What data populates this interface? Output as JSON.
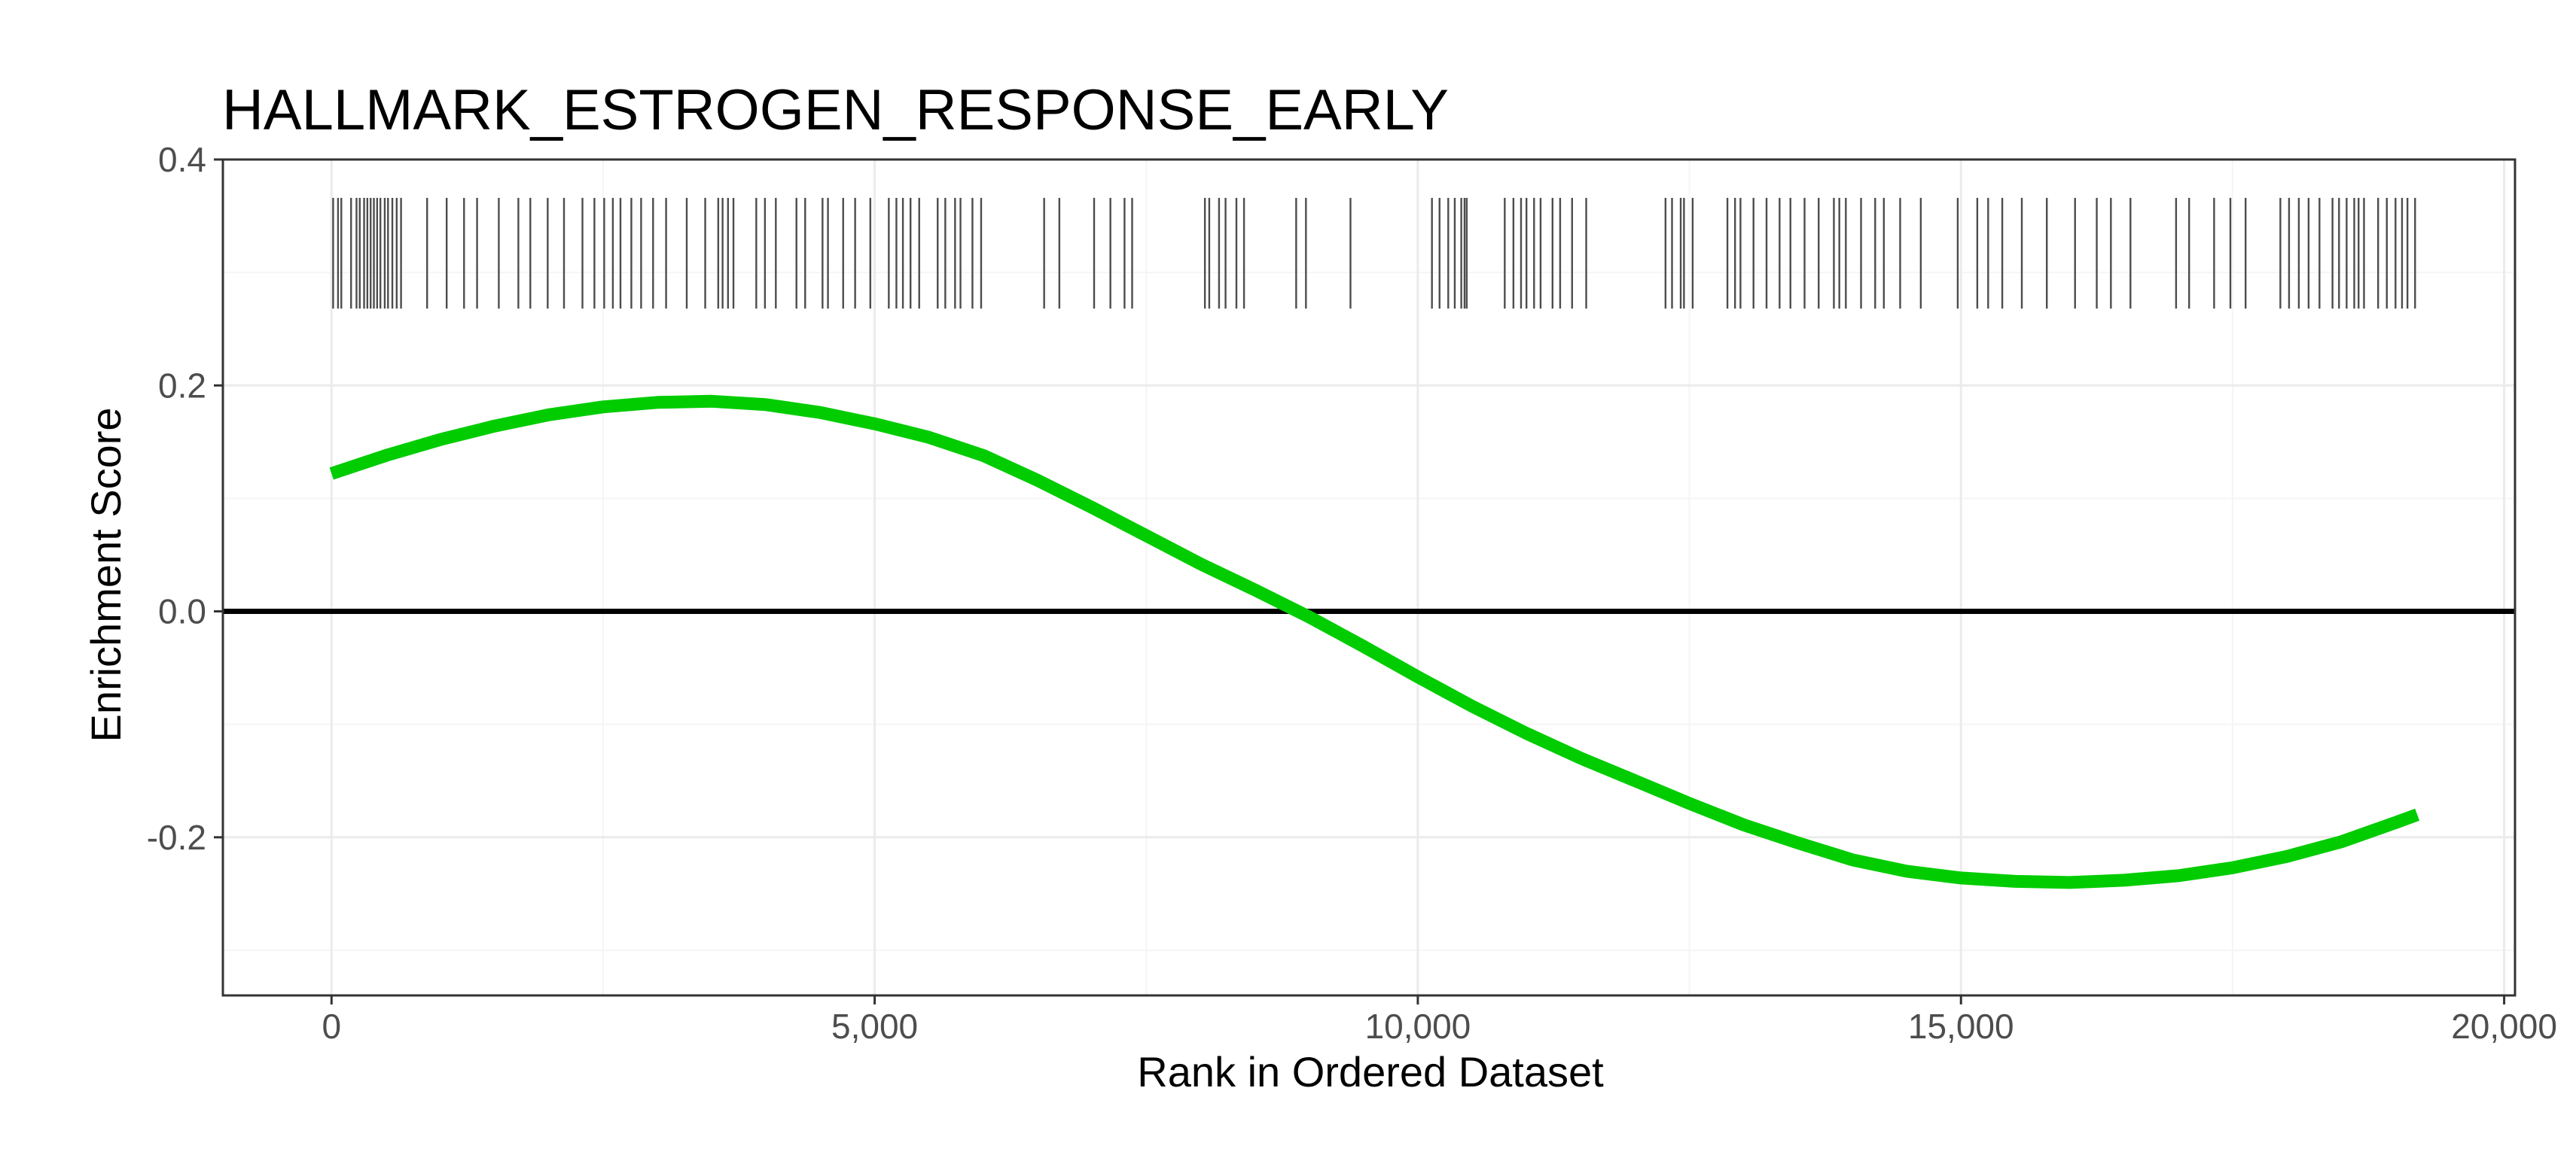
{
  "chart_data": {
    "type": "line",
    "title": "HALLMARK_ESTROGEN_RESPONSE_EARLY",
    "xlabel": "Rank in Ordered Dataset",
    "ylabel": "Enrichment Score",
    "xlim": [
      -1000,
      20100
    ],
    "ylim": [
      -0.34,
      0.4
    ],
    "x_ticks": [
      0,
      5000,
      10000,
      15000,
      20000
    ],
    "x_tick_labels": [
      "0",
      "5,000",
      "10,000",
      "15,000",
      "20,000"
    ],
    "y_ticks": [
      -0.2,
      0.0,
      0.2,
      0.4
    ],
    "y_tick_labels": [
      "-0.2",
      "0.0",
      "0.2",
      "0.4"
    ],
    "grid": true,
    "reference_line_y": 0.0,
    "series": [
      {
        "values": [
          {
            "x": 0,
            "y": 0.122
          },
          {
            "x": 500,
            "y": 0.138
          },
          {
            "x": 1000,
            "y": 0.152
          },
          {
            "x": 1500,
            "y": 0.164
          },
          {
            "x": 2000,
            "y": 0.174
          },
          {
            "x": 2500,
            "y": 0.181
          },
          {
            "x": 3000,
            "y": 0.185
          },
          {
            "x": 3500,
            "y": 0.186
          },
          {
            "x": 4000,
            "y": 0.183
          },
          {
            "x": 4500,
            "y": 0.176
          },
          {
            "x": 5000,
            "y": 0.166
          },
          {
            "x": 5500,
            "y": 0.154
          },
          {
            "x": 6000,
            "y": 0.138
          },
          {
            "x": 6500,
            "y": 0.116
          },
          {
            "x": 7000,
            "y": 0.092
          },
          {
            "x": 7500,
            "y": 0.067
          },
          {
            "x": 8000,
            "y": 0.042
          },
          {
            "x": 8500,
            "y": 0.019
          },
          {
            "x": 9000,
            "y": -0.005
          },
          {
            "x": 9500,
            "y": -0.031
          },
          {
            "x": 10000,
            "y": -0.058
          },
          {
            "x": 10500,
            "y": -0.084
          },
          {
            "x": 11000,
            "y": -0.108
          },
          {
            "x": 11500,
            "y": -0.13
          },
          {
            "x": 12000,
            "y": -0.15
          },
          {
            "x": 12500,
            "y": -0.17
          },
          {
            "x": 13000,
            "y": -0.189
          },
          {
            "x": 13500,
            "y": -0.205
          },
          {
            "x": 14000,
            "y": -0.22
          },
          {
            "x": 14500,
            "y": -0.23
          },
          {
            "x": 15000,
            "y": -0.236
          },
          {
            "x": 15500,
            "y": -0.239
          },
          {
            "x": 16000,
            "y": -0.24
          },
          {
            "x": 16500,
            "y": -0.238
          },
          {
            "x": 17000,
            "y": -0.234
          },
          {
            "x": 17500,
            "y": -0.227
          },
          {
            "x": 18000,
            "y": -0.217
          },
          {
            "x": 18500,
            "y": -0.204
          },
          {
            "x": 19000,
            "y": -0.187
          },
          {
            "x": 19200,
            "y": -0.18
          }
        ]
      }
    ],
    "rug_y_range": [
      0.268,
      0.366
    ],
    "rug_positions": [
      15,
      60,
      90,
      180,
      230,
      260,
      300,
      330,
      360,
      390,
      420,
      450,
      490,
      520,
      560,
      600,
      640,
      880,
      1060,
      1220,
      1340,
      1540,
      1720,
      1830,
      1990,
      2140,
      2310,
      2420,
      2510,
      2590,
      2660,
      2760,
      2850,
      2960,
      3080,
      3270,
      3440,
      3560,
      3600,
      3650,
      3700,
      3910,
      3990,
      4090,
      4280,
      4360,
      4520,
      4570,
      4710,
      4820,
      4960,
      5130,
      5200,
      5260,
      5330,
      5410,
      5580,
      5650,
      5740,
      5790,
      5900,
      5980,
      6560,
      6700,
      7020,
      7170,
      7300,
      7370,
      8040,
      8080,
      8170,
      8230,
      8330,
      8400,
      8880,
      8970,
      9380,
      10130,
      10200,
      10280,
      10340,
      10400,
      10430,
      10450,
      10800,
      10880,
      10950,
      11000,
      11070,
      11130,
      11240,
      11310,
      11420,
      11550,
      12280,
      12340,
      12420,
      12450,
      12530,
      12850,
      12920,
      12970,
      13090,
      13210,
      13330,
      13430,
      13560,
      13690,
      13830,
      13880,
      13940,
      14080,
      14210,
      14290,
      14440,
      14630,
      14970,
      15150,
      15250,
      15380,
      15560,
      15790,
      16050,
      16250,
      16380,
      16560,
      16980,
      17100,
      17330,
      17480,
      17620,
      17940,
      18020,
      18110,
      18200,
      18300,
      18420,
      18480,
      18550,
      18620,
      18660,
      18710,
      18840,
      18920,
      19000,
      19060,
      19110,
      19180
    ],
    "colors": {
      "curve": "#00cc00",
      "reference_line": "#000000",
      "rug": "#4d4d4d",
      "grid_major": "#ebebeb",
      "grid_minor": "#f5f5f5",
      "panel_border": "#333333"
    }
  }
}
